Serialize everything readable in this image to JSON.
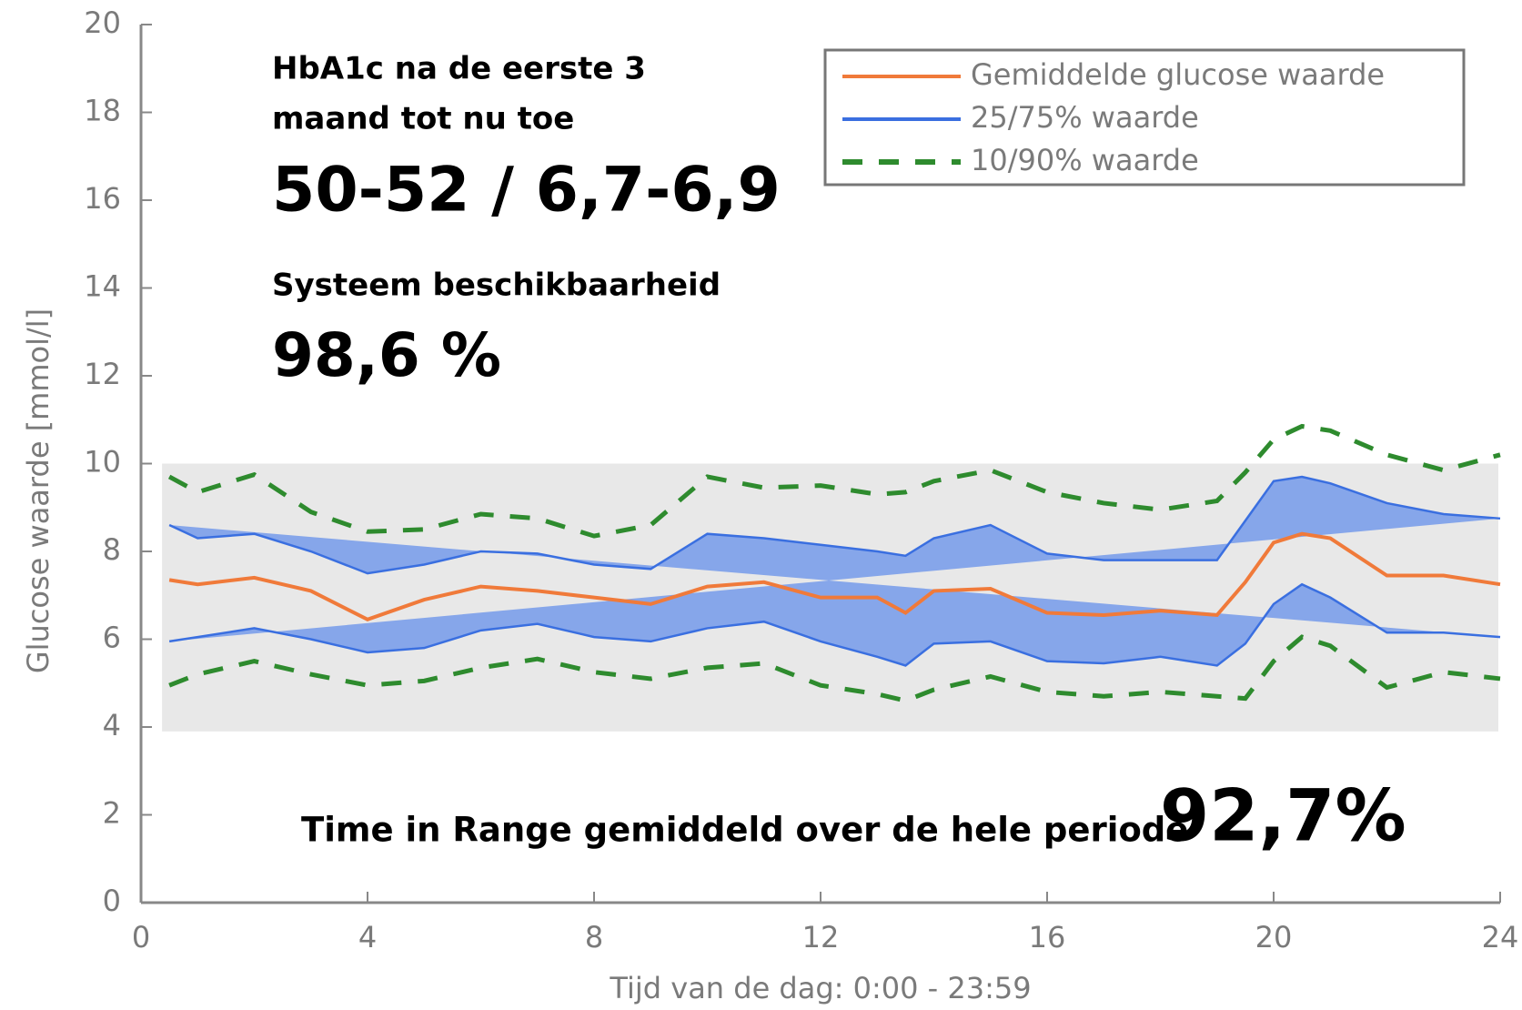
{
  "chart_data": {
    "type": "line",
    "x_label": "Tijd van de dag: 0:00 - 23:59",
    "y_label": "Glucose waarde [mmol/l]",
    "xlim": [
      0,
      24
    ],
    "xticks": [
      0,
      4,
      8,
      12,
      16,
      20,
      24
    ],
    "ylim": [
      0,
      20
    ],
    "yticks": [
      0,
      2,
      4,
      6,
      8,
      10,
      12,
      14,
      16,
      18,
      20
    ],
    "target_range": [
      3.9,
      10
    ],
    "target_color": "#e8e8e8",
    "x": [
      0.5,
      1,
      2,
      3,
      4,
      5,
      6,
      7,
      8,
      9,
      10,
      11,
      12,
      13,
      13.5,
      14,
      15,
      16,
      17,
      18,
      19,
      19.5,
      20,
      20.5,
      21,
      22,
      23,
      24
    ],
    "series": [
      {
        "name": "Gemiddelde glucose waarde",
        "color": "#f07a3a",
        "values": [
          7.35,
          7.25,
          7.4,
          7.1,
          6.45,
          6.9,
          7.2,
          7.1,
          6.95,
          6.8,
          7.2,
          7.3,
          6.95,
          6.95,
          6.6,
          7.1,
          7.15,
          6.6,
          6.55,
          6.65,
          6.55,
          7.3,
          8.2,
          8.4,
          8.3,
          7.45,
          7.45,
          7.25
        ]
      },
      {
        "name": "25/75% waarde",
        "color": "#3a6fe0",
        "fill": "#86a6ea",
        "upper": [
          8.6,
          8.3,
          8.4,
          8.0,
          7.5,
          7.7,
          8.0,
          7.95,
          7.7,
          7.6,
          8.4,
          8.3,
          8.15,
          8.0,
          7.9,
          8.3,
          8.6,
          7.95,
          7.8,
          7.8,
          7.8,
          8.7,
          9.6,
          9.7,
          9.55,
          9.1,
          8.85,
          8.75
        ],
        "lower": [
          5.95,
          6.05,
          6.25,
          6.0,
          5.7,
          5.8,
          6.2,
          6.35,
          6.05,
          5.95,
          6.25,
          6.4,
          5.95,
          5.6,
          5.4,
          5.9,
          5.95,
          5.5,
          5.45,
          5.6,
          5.4,
          5.9,
          6.8,
          7.25,
          6.95,
          6.15,
          6.15,
          6.05
        ]
      },
      {
        "name": "10/90% waarde",
        "color": "#2e8b2e",
        "dashed": true,
        "upper": [
          9.7,
          9.35,
          9.75,
          8.9,
          8.45,
          8.5,
          8.85,
          8.75,
          8.35,
          8.6,
          9.7,
          9.45,
          9.5,
          9.3,
          9.35,
          9.6,
          9.85,
          9.35,
          9.1,
          8.95,
          9.15,
          9.8,
          10.55,
          10.85,
          10.75,
          10.2,
          9.85,
          10.2
        ],
        "lower": [
          4.95,
          5.2,
          5.5,
          5.2,
          4.95,
          5.05,
          5.35,
          5.55,
          5.25,
          5.1,
          5.35,
          5.45,
          4.95,
          4.75,
          4.6,
          4.85,
          5.15,
          4.8,
          4.7,
          4.8,
          4.7,
          4.65,
          5.5,
          6.05,
          5.85,
          4.9,
          5.25,
          5.1
        ]
      }
    ],
    "annotations": [
      "HbA1c  na de eerste 3",
      "maand tot nu toe",
      "50-52 / 6,7-6,9",
      "Systeem beschikbaarheid",
      "98,6 %",
      "Time in Range gemiddeld over de  hele periode",
      "92,7%"
    ]
  }
}
